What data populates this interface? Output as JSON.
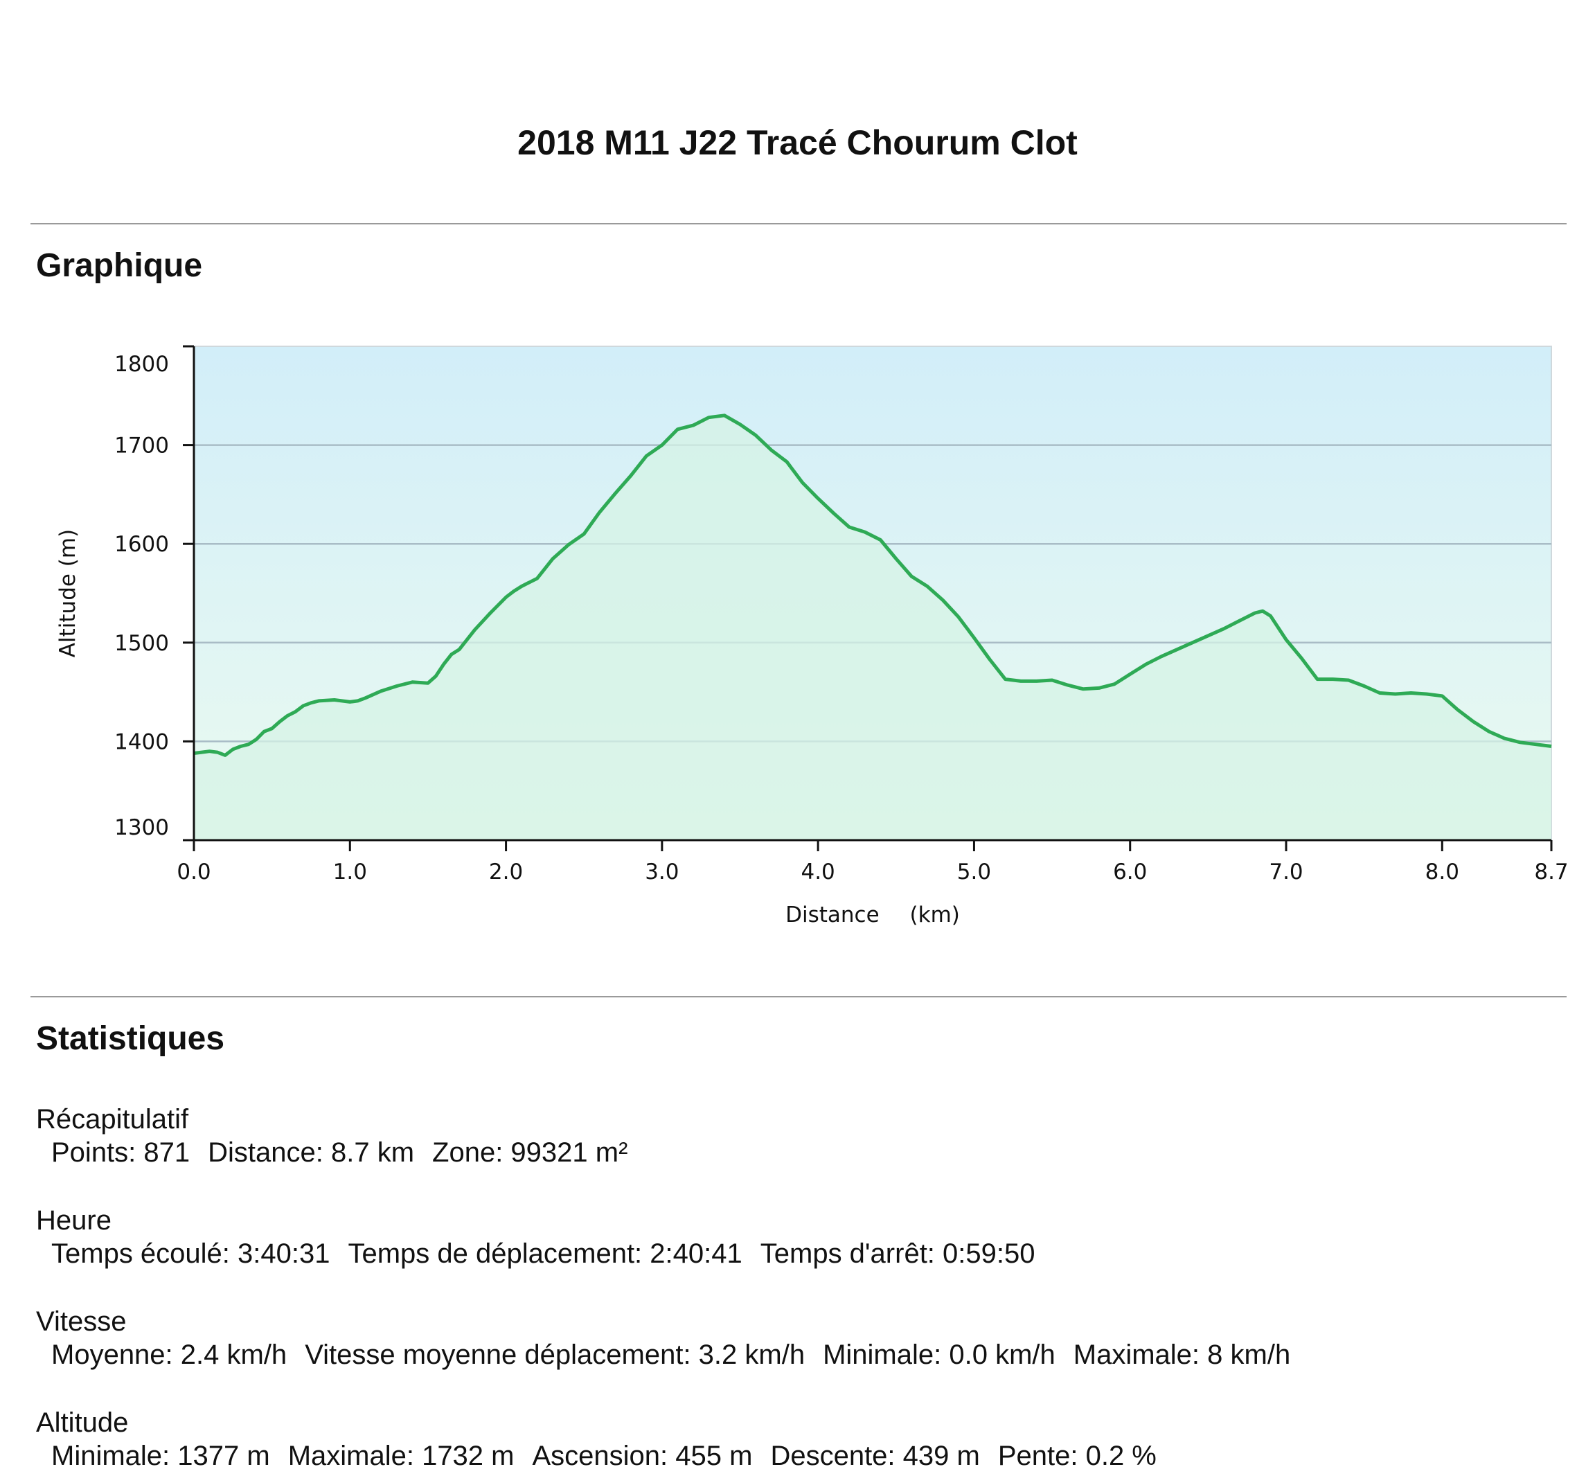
{
  "header": {
    "title": "2018 M11 J22 Tracé Chourum Clot"
  },
  "graph_section": {
    "heading": "Graphique"
  },
  "stats_section": {
    "heading": "Statistiques",
    "groups": [
      {
        "title": "Récapitulatif",
        "items": [
          "Points: 871",
          "Distance: 8.7 km",
          "Zone: 99321 m²"
        ]
      },
      {
        "title": "Heure",
        "items": [
          "Temps écoulé: 3:40:31",
          "Temps de déplacement: 2:40:41",
          "Temps d'arrêt: 0:59:50"
        ]
      },
      {
        "title": "Vitesse",
        "items": [
          "Moyenne: 2.4 km/h",
          "Vitesse moyenne déplacement: 3.2 km/h",
          "Minimale: 0.0 km/h",
          "Maximale: 8 km/h"
        ]
      },
      {
        "title": "Altitude",
        "items": [
          "Minimale: 1377 m",
          "Maximale: 1732 m",
          "Ascension: 455 m",
          "Descente: 439 m",
          "Pente: 0.2 %"
        ]
      }
    ]
  },
  "colors": {
    "line": "#2eaa55",
    "fill_top": "#d2eef9",
    "fill_bottom": "#eafaf0",
    "area_fill": "#d6f3e6",
    "grid": "#a9bcc6"
  },
  "chart_data": {
    "type": "area",
    "xlabel": "Distance",
    "xunit": "(km)",
    "ylabel": "Altitude (m)",
    "xlim": [
      0,
      8.7
    ],
    "ylim": [
      1300,
      1800
    ],
    "xticks": [
      0.0,
      1.0,
      2.0,
      3.0,
      4.0,
      5.0,
      6.0,
      7.0,
      8.0,
      8.7
    ],
    "xtick_labels": [
      "0.0",
      "1.0",
      "2.0",
      "3.0",
      "4.0",
      "5.0",
      "6.0",
      "7.0",
      "8.0",
      "8.7"
    ],
    "yticks": [
      1300,
      1400,
      1500,
      1600,
      1700,
      1800
    ],
    "ytick_labels": [
      "1300",
      "1400",
      "1500",
      "1600",
      "1700",
      "1800"
    ],
    "grid": true,
    "series": [
      {
        "x": [
          0.0,
          0.05,
          0.1,
          0.15,
          0.2,
          0.25,
          0.3,
          0.35,
          0.4,
          0.45,
          0.5,
          0.55,
          0.6,
          0.65,
          0.7,
          0.75,
          0.8,
          0.9,
          1.0,
          1.05,
          1.1,
          1.2,
          1.3,
          1.4,
          1.5,
          1.55,
          1.6,
          1.65,
          1.7,
          1.8,
          1.9,
          2.0,
          2.05,
          2.1,
          2.2,
          2.3,
          2.4,
          2.5,
          2.6,
          2.7,
          2.8,
          2.9,
          3.0,
          3.1,
          3.2,
          3.3,
          3.4,
          3.5,
          3.6,
          3.7,
          3.8,
          3.9,
          4.0,
          4.1,
          4.2,
          4.3,
          4.4,
          4.5,
          4.6,
          4.7,
          4.8,
          4.9,
          5.0,
          5.1,
          5.2,
          5.3,
          5.4,
          5.5,
          5.6,
          5.7,
          5.8,
          5.9,
          6.0,
          6.1,
          6.2,
          6.3,
          6.4,
          6.5,
          6.6,
          6.7,
          6.8,
          6.85,
          6.9,
          7.0,
          7.1,
          7.2,
          7.3,
          7.4,
          7.5,
          7.6,
          7.7,
          7.8,
          7.9,
          8.0,
          8.1,
          8.2,
          8.3,
          8.4,
          8.5,
          8.6,
          8.7
        ],
        "y": [
          1388,
          1389,
          1390,
          1389,
          1386,
          1392,
          1395,
          1397,
          1402,
          1410,
          1413,
          1420,
          1426,
          1430,
          1436,
          1439,
          1441,
          1442,
          1440,
          1441,
          1444,
          1451,
          1456,
          1460,
          1459,
          1466,
          1478,
          1488,
          1493,
          1513,
          1530,
          1546,
          1552,
          1557,
          1565,
          1585,
          1599,
          1610,
          1632,
          1651,
          1669,
          1689,
          1700,
          1716,
          1720,
          1728,
          1730,
          1721,
          1710,
          1695,
          1683,
          1662,
          1646,
          1631,
          1617,
          1612,
          1604,
          1585,
          1567,
          1557,
          1543,
          1526,
          1505,
          1483,
          1463,
          1461,
          1461,
          1462,
          1457,
          1453,
          1454,
          1458,
          1468,
          1478,
          1486,
          1493,
          1500,
          1507,
          1514,
          1522,
          1530,
          1532,
          1527,
          1503,
          1484,
          1463,
          1463,
          1462,
          1456,
          1449,
          1448,
          1449,
          1448,
          1446,
          1432,
          1420,
          1410,
          1403,
          1399,
          1397,
          1395
        ]
      }
    ]
  }
}
